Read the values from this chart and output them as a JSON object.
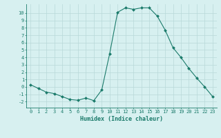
{
  "x": [
    0,
    1,
    2,
    3,
    4,
    5,
    6,
    7,
    8,
    9,
    10,
    11,
    12,
    13,
    14,
    15,
    16,
    17,
    18,
    19,
    20,
    21,
    22,
    23
  ],
  "y": [
    0.3,
    -0.2,
    -0.7,
    -0.9,
    -1.3,
    -1.7,
    -1.8,
    -1.5,
    -1.85,
    -0.4,
    4.5,
    10.1,
    10.7,
    10.5,
    10.7,
    10.7,
    9.6,
    7.7,
    5.3,
    4.0,
    2.5,
    1.2,
    0.0,
    -1.3
  ],
  "line_color": "#1a7a6a",
  "marker": "D",
  "marker_size": 2,
  "bg_color": "#d7f0f0",
  "grid_color": "#b8d8d8",
  "xlabel": "Humidex (Indice chaleur)",
  "xlim": [
    -0.5,
    23.5
  ],
  "ylim": [
    -2.8,
    11.2
  ],
  "yticks": [
    -2,
    -1,
    0,
    1,
    2,
    3,
    4,
    5,
    6,
    7,
    8,
    9,
    10
  ],
  "xticks": [
    0,
    1,
    2,
    3,
    4,
    5,
    6,
    7,
    8,
    9,
    10,
    11,
    12,
    13,
    14,
    15,
    16,
    17,
    18,
    19,
    20,
    21,
    22,
    23
  ],
  "tick_fontsize": 5.0,
  "xlabel_fontsize": 6.0
}
